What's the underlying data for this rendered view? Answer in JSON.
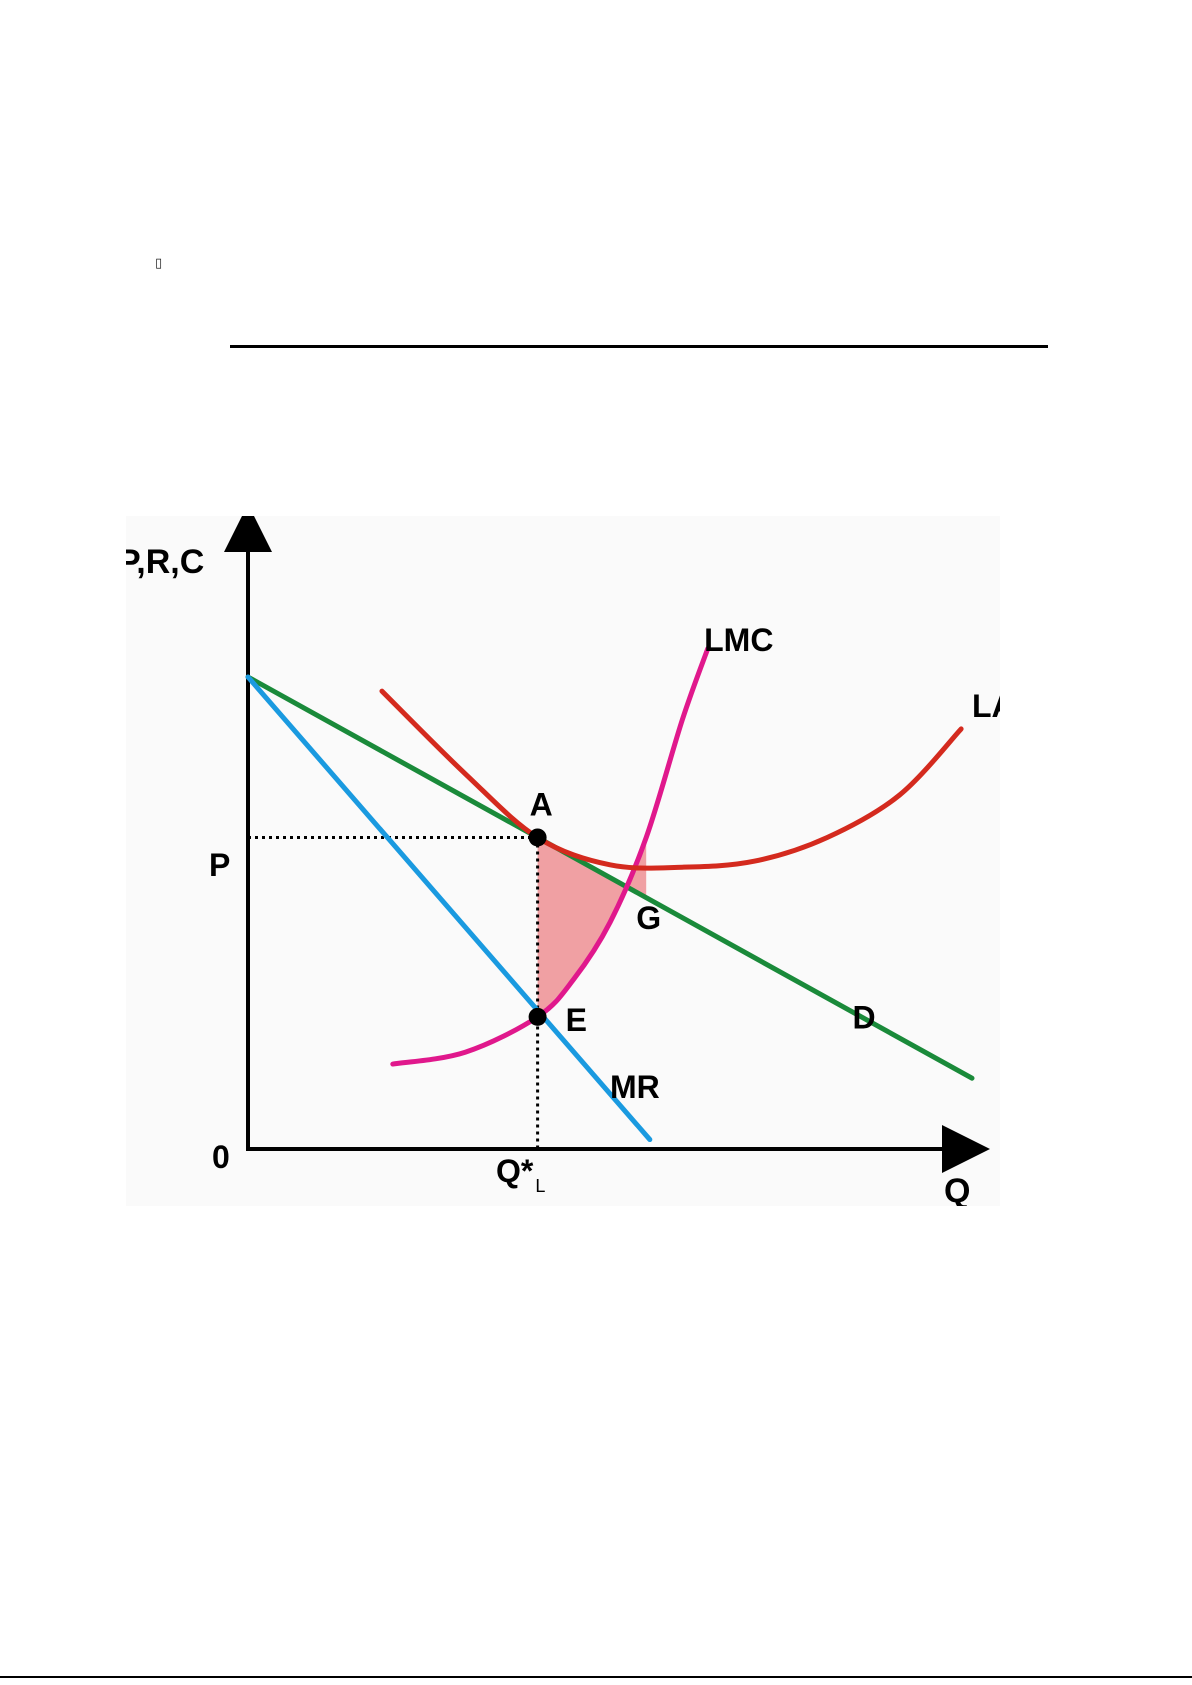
{
  "page": {
    "unknown_glyph": "▯"
  },
  "chart_data": {
    "type": "line",
    "title": "",
    "ylabel": "P,R,C",
    "xlabel": "Q",
    "origin_label": "0",
    "xlim": [
      0,
      10
    ],
    "ylim": [
      0,
      10
    ],
    "price_label": "P",
    "quantity_label": "Q*",
    "quantity_subscript": "L",
    "series": [
      {
        "name": "D",
        "color": "#1a8a3a",
        "x": [
          0,
          10
        ],
        "y": [
          10,
          1.5
        ]
      },
      {
        "name": "MR",
        "color": "#1a9ae0",
        "x": [
          0,
          5.55
        ],
        "y": [
          10,
          0.2
        ]
      },
      {
        "name": "LMC",
        "color": "#e0188c",
        "x": [
          2,
          3,
          4,
          4.5,
          5,
          5.5,
          6,
          6.35
        ],
        "y": [
          1.8,
          2.05,
          2.8,
          3.6,
          4.8,
          6.6,
          9.1,
          10.6
        ]
      },
      {
        "name": "LAC",
        "color": "#d42a1e",
        "x": [
          1.85,
          3,
          4,
          5,
          6,
          7,
          8,
          9,
          9.85
        ],
        "y": [
          9.7,
          7.95,
          6.6,
          6.02,
          5.97,
          6.1,
          6.6,
          7.5,
          8.9
        ]
      }
    ],
    "points": [
      {
        "label": "A",
        "x": 4,
        "y": 6.6
      },
      {
        "label": "E",
        "x": 4,
        "y": 2.8
      }
    ],
    "annotations": [
      {
        "label": "G",
        "x": 5.5,
        "y": 5.3
      }
    ],
    "shaded_region": {
      "between": [
        "D",
        "LMC"
      ],
      "from_x": 4,
      "to_x": 5.5,
      "color": "#f0a0a3"
    },
    "dotted_guides": [
      "P to A",
      "A to Q*"
    ]
  }
}
